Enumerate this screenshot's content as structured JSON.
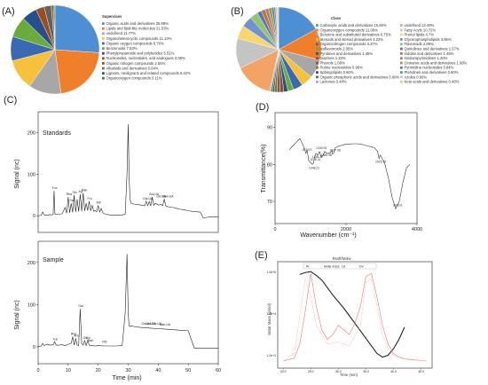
{
  "panels": {
    "A": "(A)",
    "B": "(B)",
    "C": "(C)",
    "D": "(D)",
    "E": "(E)"
  },
  "chart_data": [
    {
      "id": "A",
      "type": "pie",
      "legend_title": "Superclass",
      "legend_position": "right",
      "categories": [
        "Organic acids and derivatives 25.88%",
        "Lipids and lipid-like molecules 21.53%",
        "undefined 11.77%",
        "Organoheterocyclic compounds 11.13%",
        "Organic oxygen compounds 8.76%",
        "Benzenoids 7.53%",
        "Phenylpropanoids and polyketides 5.51%",
        "Nucleosides, nucleotides, and analogues 3.08%",
        "Organic nitrogen compounds 2.55%",
        "Alkaloids and derivatives 0.84%",
        "Lignans, neolignans and related compounds 0.42%",
        "Organooxygen compounds 0.11%"
      ],
      "values": [
        25.88,
        21.53,
        11.77,
        11.13,
        8.76,
        7.53,
        5.51,
        3.08,
        2.55,
        0.84,
        0.42,
        0.11
      ],
      "colors": [
        "#4e8fd4",
        "#ef7f2b",
        "#a7a7a7",
        "#f7c23b",
        "#3b68b3",
        "#6bab3c",
        "#264f8c",
        "#9e4e1e",
        "#616161",
        "#937021",
        "#2d4f86",
        "#4a7b2e"
      ]
    },
    {
      "id": "B",
      "type": "pie",
      "legend_title": "Class",
      "legend_position": "right",
      "categories": [
        "Carboxylic acids and derivatives 15.90%",
        "Organooxygen compounds 11.08%",
        "Benzene and substituted derivatives 6.75%",
        "Steroids and steroid derivatives 4.22%",
        "Organonitrogen compounds 3.37%",
        "Isoflavonoids 2.05%",
        "Pyridines and derivatives 1.45%",
        "Diazines 1.33%",
        "Phenols 1.08%",
        "Purine nucleosides 0.96%",
        "Sphingolipids 0.60%",
        "Organic phosphoric acids and derivatives 0.60%",
        "Lactones 0.48%",
        "undefined 13.49%",
        "Fatty Acyls 10.72%",
        "Prenol lipids 4.7%",
        "Glycerophospholipids 3.86%",
        "Flavonoids 2.89%",
        "Quinolines and derivatives 1.57%",
        "Indoles and derivatives 1.45%",
        "Imidazopyrimidines 1.20%",
        "Cinnamic acids and derivatives 1.08%",
        "Pyrimidine nucleosides 0.84%",
        "Pteridines and derivatives 0.60%",
        "Azoles 0.60%",
        "Keto acids and derivatives 0.48%"
      ],
      "values": [
        15.9,
        11.08,
        6.75,
        4.22,
        3.37,
        2.05,
        1.45,
        1.33,
        1.08,
        0.96,
        0.6,
        0.6,
        0.48,
        13.49,
        10.72,
        4.7,
        3.86,
        2.89,
        1.57,
        1.45,
        1.2,
        1.08,
        0.84,
        0.6,
        0.6,
        0.48
      ],
      "colors": [
        "#4e8fd4",
        "#ef7f2b",
        "#a7a7a7",
        "#f7c23b",
        "#3b68b3",
        "#6bab3c",
        "#264f8c",
        "#9e4e1e",
        "#616161",
        "#937021",
        "#2d4f86",
        "#4a7b2e",
        "#7fb2e3",
        "#f4a366",
        "#c4c4c4",
        "#f9d56d",
        "#6f93cf",
        "#95c56f",
        "#5378b8",
        "#c76f3a",
        "#8a8a8a",
        "#b89038",
        "#5a7fb8",
        "#6b9b4c",
        "#a9cdee",
        "#f7c29a"
      ]
    },
    {
      "id": "C",
      "type": "line",
      "subplots": [
        {
          "title": "Standards",
          "ylabel": "Signal (nc)",
          "yticks": [
            0,
            100,
            200
          ],
          "ylim": [
            -40,
            250
          ],
          "x": [
            0,
            1,
            1.5,
            2,
            2.5,
            3,
            3.5,
            4,
            4.5,
            5,
            5.3,
            5.6,
            6,
            7,
            8,
            9,
            9.5,
            10,
            10.5,
            11,
            11.5,
            12,
            12.5,
            13,
            13.5,
            14,
            14.5,
            15,
            15.5,
            16,
            16.5,
            17,
            17.5,
            18,
            18.5,
            19,
            19.5,
            20,
            20.5,
            21,
            21.5,
            22,
            22.5,
            23,
            24,
            26,
            28,
            29,
            29.6,
            30,
            30.3,
            30.6,
            31,
            32,
            33,
            34,
            35,
            35.5,
            36,
            36.5,
            37,
            37.5,
            38,
            38.5,
            39,
            40,
            41,
            41.5,
            42,
            42.5,
            43,
            44,
            45,
            46,
            47,
            48,
            49,
            50,
            52,
            54,
            55,
            56,
            57,
            58,
            60
          ],
          "values": [
            0,
            1,
            9,
            2,
            1,
            2,
            2,
            3,
            2,
            3,
            60,
            4,
            3,
            4,
            5,
            20,
            6,
            45,
            7,
            30,
            8,
            50,
            9,
            40,
            10,
            52,
            11,
            55,
            12,
            30,
            13,
            35,
            12,
            25,
            11,
            12,
            10,
            25,
            9,
            18,
            8,
            5,
            4,
            3,
            2,
            2,
            2,
            4,
            100,
            220,
            95,
            40,
            30,
            28,
            27,
            26,
            25,
            24,
            35,
            24,
            34,
            24,
            45,
            25,
            30,
            26,
            27,
            24,
            40,
            24,
            22,
            21,
            20,
            18,
            16,
            15,
            14,
            12,
            10,
            9,
            -5,
            -4,
            -3,
            -3,
            -3
          ]
        },
        {
          "title": "Sample",
          "ylabel": "Signal (nc)",
          "yticks": [
            0,
            100,
            200
          ],
          "ylim": [
            -40,
            250
          ],
          "x": [
            0,
            1,
            1.5,
            2,
            3,
            4,
            5,
            5.5,
            6,
            7,
            8,
            9,
            10,
            11,
            11.5,
            12,
            12.5,
            13,
            13.5,
            14,
            14.5,
            15,
            15.5,
            16,
            16.5,
            17,
            17.5,
            18,
            19,
            20,
            22,
            24,
            26,
            28,
            29,
            29.6,
            30,
            30.3,
            30.6,
            31,
            32,
            34,
            36,
            38,
            40,
            42,
            44,
            46,
            48,
            50,
            52,
            54,
            55,
            56,
            57,
            58,
            60
          ],
          "values": [
            0,
            2,
            8,
            3,
            6,
            4,
            5,
            12,
            4,
            4,
            5,
            3,
            6,
            8,
            24,
            4,
            20,
            4,
            3,
            90,
            8,
            4,
            15,
            3,
            15,
            4,
            3,
            3,
            2,
            3,
            2,
            2,
            2,
            3,
            80,
            220,
            80,
            50,
            48,
            50,
            48,
            46,
            45,
            44,
            43,
            42,
            41,
            40,
            39,
            38,
            -3,
            -3,
            -3,
            -3,
            -3,
            -3,
            -3
          ]
        }
      ],
      "xlabel": "Time (min)",
      "xticks": [
        0,
        10,
        20,
        30,
        40,
        50,
        60
      ],
      "xlim": [
        0,
        60
      ],
      "standards_peaks": [
        "Fuc",
        "Rha",
        "Gal",
        "Glc",
        "Xyl",
        "Man",
        "Fru",
        "Rib",
        "Gal-UA",
        "Gul-UA",
        "Glc-UA",
        "Man-UA"
      ],
      "sample_peaks": [
        "Fuc",
        "Rha",
        "Ara",
        "Gal",
        "Glc",
        "Xyl",
        "Man",
        "Rib",
        "Gal-UA",
        "Gul-UA",
        "Glc-UA",
        "Man-UA"
      ]
    },
    {
      "id": "D",
      "type": "line",
      "xlabel": "Wavenumber (cm⁻¹)",
      "ylabel": "Transmittance(%)",
      "xticks": [
        0,
        2000,
        4000
      ],
      "xlim": [
        0,
        4000
      ],
      "yticks": [
        70,
        80,
        90
      ],
      "ylim": [
        64,
        94
      ],
      "x": [
        400,
        500,
        600,
        700,
        800,
        870,
        900,
        950,
        1000,
        1050,
        1080,
        1120,
        1150,
        1200,
        1250,
        1300,
        1350,
        1400,
        1450,
        1500,
        1550,
        1600,
        1620,
        1650,
        1700,
        1800,
        1900,
        2000,
        2100,
        2200,
        2300,
        2400,
        2500,
        2600,
        2700,
        2800,
        2890,
        2930,
        2960,
        3000,
        3100,
        3200,
        3300,
        3400,
        3500,
        3600,
        3700,
        3800
      ],
      "values": [
        84,
        85,
        86,
        87,
        85,
        83,
        84,
        81,
        80.5,
        80,
        80.3,
        82,
        83,
        82.5,
        83.5,
        82,
        82.5,
        83.5,
        83,
        83,
        83,
        83.8,
        82.8,
        83,
        84.5,
        85,
        85.2,
        85.5,
        85.5,
        85.6,
        85.6,
        85.5,
        85.3,
        85,
        84.8,
        84.5,
        83.5,
        81.6,
        82.5,
        82,
        80,
        76,
        71,
        68,
        70,
        75,
        79,
        80
      ],
      "annotations": [
        "873.92",
        "1048.21",
        "1078.31",
        "1148.25",
        "1249.05",
        "1389.98",
        "1637.98",
        "2925.76",
        "3420.6"
      ]
    },
    {
      "id": "E",
      "type": "line",
      "title": "Rsoft/Molw",
      "ylabel": "Molar Mass (g/mol)",
      "xlabel": "Time (min)",
      "yticks": [
        "1.0e+3",
        "1.0e+4",
        "1.0e+5"
      ],
      "xticks": [
        "20.0",
        "25.0",
        "30.0",
        "35.0",
        "40.0",
        "45.0"
      ],
      "xlim": [
        19,
        47
      ],
      "legend": [
        "RI",
        "Molar mass",
        "LS",
        "UV"
      ],
      "series": [
        {
          "name": "Molar mass",
          "color": "#222222",
          "x": [
            23,
            24,
            25,
            26,
            27,
            28,
            29,
            30,
            31,
            32,
            33,
            34,
            35,
            36,
            37,
            38,
            39,
            40,
            41,
            42
          ],
          "values": [
            0.94,
            0.96,
            0.97,
            0.93,
            0.88,
            0.8,
            0.72,
            0.65,
            0.58,
            0.5,
            0.42,
            0.34,
            0.26,
            0.18,
            0.1,
            0.06,
            0.08,
            0.15,
            0.25,
            0.38
          ]
        },
        {
          "name": "RI",
          "color": "#e07a7a",
          "x": [
            20,
            22,
            23,
            24,
            25,
            26,
            27,
            28,
            29,
            30,
            31,
            32,
            33,
            34,
            35,
            36,
            37,
            38,
            39,
            40,
            41,
            42,
            44,
            46
          ],
          "values": [
            0.02,
            0.05,
            0.2,
            0.55,
            0.95,
            0.6,
            0.35,
            0.25,
            0.3,
            0.4,
            0.35,
            0.3,
            0.42,
            0.6,
            0.92,
            0.95,
            0.7,
            0.4,
            0.2,
            0.1,
            0.06,
            0.04,
            0.03,
            0.02
          ]
        },
        {
          "name": "LS",
          "color": "#f0b0b0",
          "x": [
            20,
            22,
            23,
            24,
            25,
            26,
            28,
            30,
            32,
            34,
            35,
            36,
            37,
            38,
            39,
            40,
            42,
            44,
            46
          ],
          "values": [
            0.02,
            0.1,
            0.5,
            0.9,
            0.7,
            0.4,
            0.2,
            0.22,
            0.18,
            0.4,
            0.85,
            0.9,
            0.6,
            0.3,
            0.15,
            0.08,
            0.05,
            0.03,
            0.02
          ]
        }
      ]
    }
  ]
}
